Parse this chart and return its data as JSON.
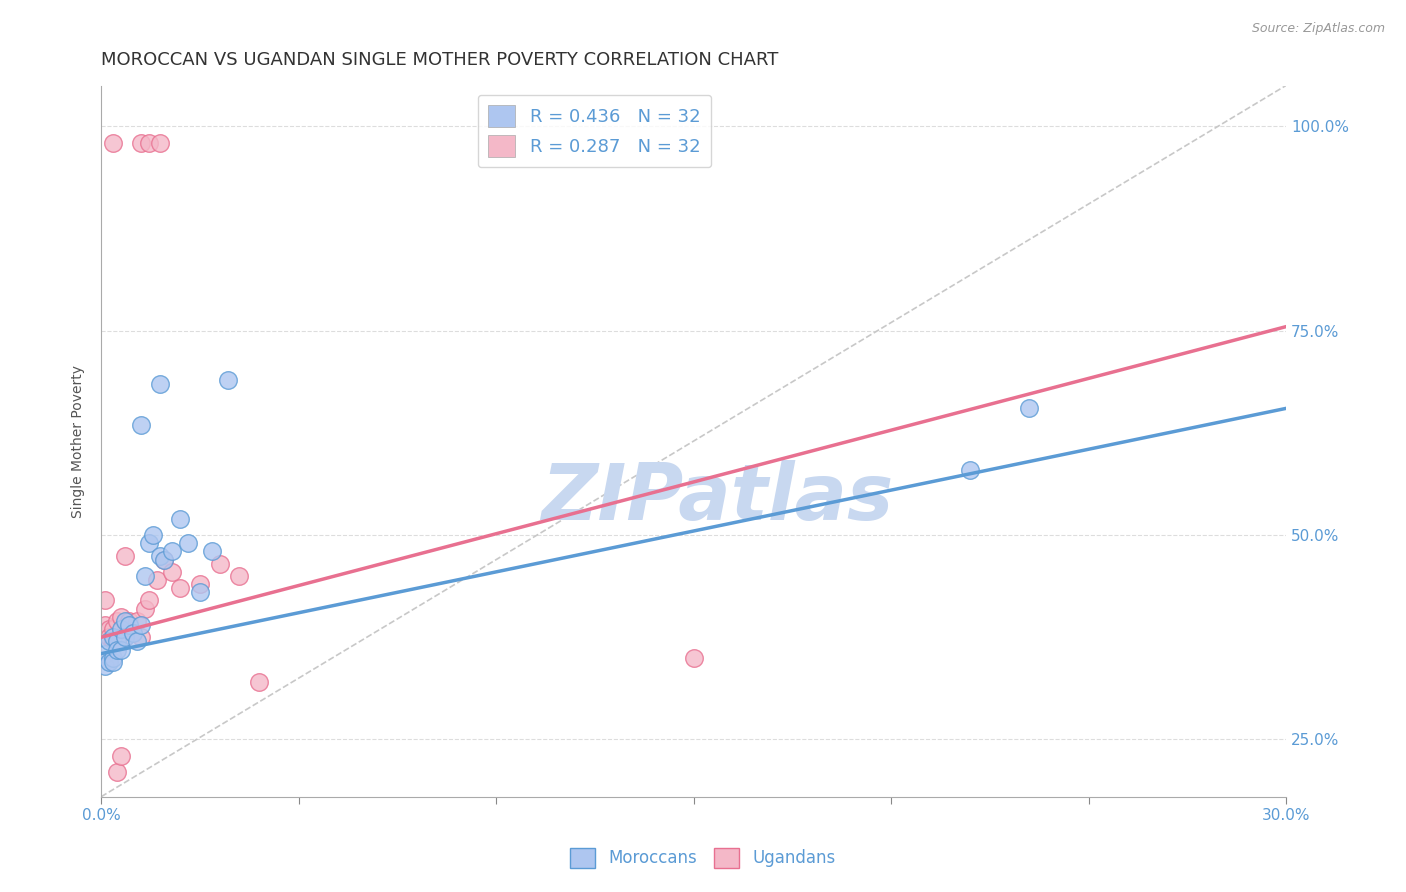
{
  "title": "MOROCCAN VS UGANDAN SINGLE MOTHER POVERTY CORRELATION CHART",
  "source": "Source: ZipAtlas.com",
  "ylabel": "Single Mother Poverty",
  "xlim": [
    0.0,
    0.3
  ],
  "ylim": [
    0.18,
    1.05
  ],
  "yticks": [
    0.25,
    0.5,
    0.75,
    1.0
  ],
  "ytick_labels": [
    "25.0%",
    "50.0%",
    "75.0%",
    "100.0%"
  ],
  "xticks": [
    0.0,
    0.05,
    0.1,
    0.15,
    0.2,
    0.25,
    0.3
  ],
  "xtick_labels": [
    "0.0%",
    "",
    "",
    "",
    "",
    "",
    "30.0%"
  ],
  "legend_entries": [
    {
      "color": "#aec6f0",
      "label": "R = 0.436   N = 32"
    },
    {
      "color": "#f4b8c8",
      "label": "R = 0.287   N = 32"
    }
  ],
  "blue_color": "#5b9bd5",
  "pink_color": "#e87090",
  "blue_fill": "#aec6f0",
  "pink_fill": "#f4b8c8",
  "moroccan_x": [
    0.001,
    0.001,
    0.002,
    0.002,
    0.003,
    0.003,
    0.003,
    0.004,
    0.004,
    0.005,
    0.005,
    0.006,
    0.006,
    0.007,
    0.008,
    0.009,
    0.01,
    0.011,
    0.012,
    0.013,
    0.015,
    0.016,
    0.018,
    0.02,
    0.022,
    0.025,
    0.028,
    0.032,
    0.22,
    0.235,
    0.015,
    0.01
  ],
  "moroccan_y": [
    0.355,
    0.34,
    0.37,
    0.345,
    0.375,
    0.35,
    0.345,
    0.37,
    0.36,
    0.385,
    0.36,
    0.395,
    0.375,
    0.39,
    0.38,
    0.37,
    0.39,
    0.45,
    0.49,
    0.5,
    0.475,
    0.47,
    0.48,
    0.52,
    0.49,
    0.43,
    0.48,
    0.69,
    0.58,
    0.655,
    0.685,
    0.635
  ],
  "ugandan_x": [
    0.001,
    0.001,
    0.002,
    0.002,
    0.003,
    0.003,
    0.004,
    0.004,
    0.005,
    0.006,
    0.007,
    0.008,
    0.009,
    0.01,
    0.011,
    0.012,
    0.014,
    0.016,
    0.018,
    0.02,
    0.025,
    0.03,
    0.035,
    0.04,
    0.15,
    0.01,
    0.012,
    0.015,
    0.003,
    0.004,
    0.005,
    0.006
  ],
  "ugandan_y": [
    0.42,
    0.39,
    0.385,
    0.375,
    0.385,
    0.37,
    0.395,
    0.37,
    0.4,
    0.375,
    0.395,
    0.38,
    0.395,
    0.375,
    0.41,
    0.42,
    0.445,
    0.47,
    0.455,
    0.435,
    0.44,
    0.465,
    0.45,
    0.32,
    0.35,
    0.98,
    0.98,
    0.98,
    0.98,
    0.21,
    0.23,
    0.475
  ],
  "blue_trend_x": [
    0.0,
    0.3
  ],
  "blue_trend_y": [
    0.355,
    0.655
  ],
  "pink_trend_x": [
    0.0,
    0.3
  ],
  "pink_trend_y": [
    0.375,
    0.755
  ],
  "ref_line_x": [
    0.0,
    0.3
  ],
  "ref_line_y": [
    0.18,
    1.05
  ],
  "watermark": "ZIPatlas",
  "watermark_color": "#c8d8f0",
  "background_color": "#ffffff",
  "grid_color": "#dddddd",
  "title_fontsize": 13,
  "tick_color": "#5b9bd5"
}
